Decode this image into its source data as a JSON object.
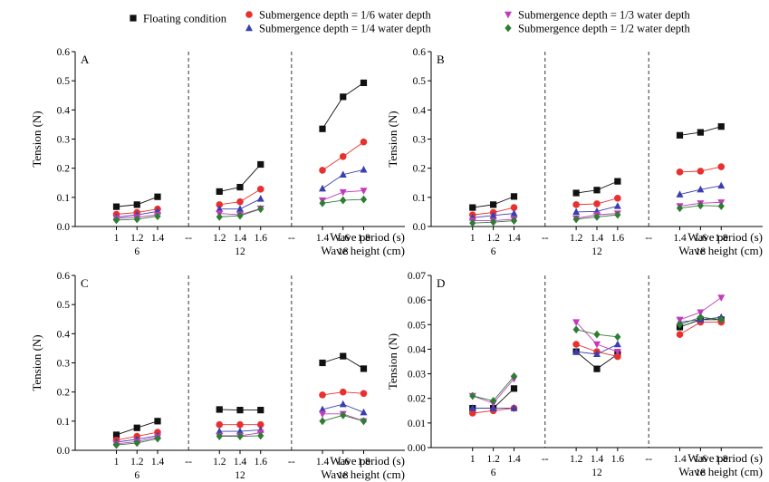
{
  "chart_data": {
    "type": "line",
    "legend": {
      "placement": "top",
      "items": [
        {
          "key": "floating",
          "label": "Floating condition",
          "marker": "square",
          "color": "#111111"
        },
        {
          "key": "d6",
          "label": "Submergence depth = 1/6 water depth",
          "marker": "circle",
          "color": "#e8312f"
        },
        {
          "key": "d4",
          "label": "Submergence depth = 1/4 water depth",
          "marker": "triangle-up",
          "color": "#3a3fb0"
        },
        {
          "key": "d3",
          "label": "Submergence depth = 1/3 water depth",
          "marker": "triangle-down",
          "color": "#c23bbf"
        },
        {
          "key": "d2",
          "label": "Submergence depth = 1/2 water depth",
          "marker": "diamond",
          "color": "#2e7d32"
        }
      ]
    },
    "x_axis": {
      "period_title": "Wave period (s)",
      "height_title": "Wave height (cm)",
      "sep_label": "--",
      "groups": [
        {
          "height": "6",
          "periods": [
            "1",
            "1.2",
            "1.4"
          ]
        },
        {
          "height": "12",
          "periods": [
            "1.2",
            "1.4",
            "1.6"
          ]
        },
        {
          "height": "18",
          "periods": [
            "1.4",
            "1.6",
            "1.8"
          ]
        }
      ]
    },
    "panels": [
      {
        "letter": "A",
        "ylabel": "Tension (N)",
        "ylim": [
          0,
          0.6
        ],
        "yticks": [
          "0.0",
          "0.1",
          "0.2",
          "0.3",
          "0.4",
          "0.5",
          "0.6"
        ],
        "series": {
          "floating": [
            [
              0.068,
              0.075,
              0.102
            ],
            [
              0.12,
              0.135,
              0.213
            ],
            [
              0.335,
              0.445,
              0.493
            ]
          ],
          "d6": [
            [
              0.042,
              0.048,
              0.06
            ],
            [
              0.075,
              0.085,
              0.128
            ],
            [
              0.193,
              0.24,
              0.29
            ]
          ],
          "d4": [
            [
              0.032,
              0.04,
              0.052
            ],
            [
              0.06,
              0.06,
              0.095
            ],
            [
              0.13,
              0.178,
              0.195
            ]
          ],
          "d3": [
            [
              0.028,
              0.032,
              0.04
            ],
            [
              0.045,
              0.04,
              0.062
            ],
            [
              0.09,
              0.118,
              0.123
            ]
          ],
          "d2": [
            [
              0.022,
              0.025,
              0.035
            ],
            [
              0.033,
              0.037,
              0.06
            ],
            [
              0.08,
              0.09,
              0.093
            ]
          ]
        }
      },
      {
        "letter": "B",
        "ylabel": "Tension (N)",
        "ylim": [
          0,
          0.6
        ],
        "yticks": [
          "0.0",
          "0.1",
          "0.2",
          "0.3",
          "0.4",
          "0.5",
          "0.6"
        ],
        "series": {
          "floating": [
            [
              0.065,
              0.075,
              0.103
            ],
            [
              0.115,
              0.125,
              0.155
            ],
            [
              0.313,
              0.323,
              0.343
            ]
          ],
          "d6": [
            [
              0.04,
              0.048,
              0.065
            ],
            [
              0.075,
              0.078,
              0.097
            ],
            [
              0.187,
              0.19,
              0.205
            ]
          ],
          "d4": [
            [
              0.03,
              0.038,
              0.045
            ],
            [
              0.05,
              0.052,
              0.07
            ],
            [
              0.11,
              0.127,
              0.14
            ]
          ],
          "d3": [
            [
              0.02,
              0.02,
              0.025
            ],
            [
              0.028,
              0.04,
              0.045
            ],
            [
              0.07,
              0.08,
              0.083
            ]
          ],
          "d2": [
            [
              0.012,
              0.015,
              0.02
            ],
            [
              0.025,
              0.033,
              0.04
            ],
            [
              0.063,
              0.072,
              0.07
            ]
          ]
        }
      },
      {
        "letter": "C",
        "ylabel": "Tension (N)",
        "ylim": [
          0,
          0.6
        ],
        "yticks": [
          "0.0",
          "0.1",
          "0.2",
          "0.3",
          "0.4",
          "0.5",
          "0.6"
        ],
        "series": {
          "floating": [
            [
              0.053,
              0.077,
              0.1
            ],
            [
              0.14,
              0.138,
              0.138
            ],
            [
              0.3,
              0.323,
              0.28
            ]
          ],
          "d6": [
            [
              0.035,
              0.048,
              0.062
            ],
            [
              0.088,
              0.088,
              0.088
            ],
            [
              0.19,
              0.2,
              0.195
            ]
          ],
          "d4": [
            [
              0.028,
              0.038,
              0.05
            ],
            [
              0.065,
              0.065,
              0.07
            ],
            [
              0.14,
              0.158,
              0.13
            ]
          ],
          "d3": [
            [
              0.022,
              0.03,
              0.045
            ],
            [
              0.05,
              0.05,
              0.06
            ],
            [
              0.125,
              0.125,
              0.1
            ]
          ],
          "d2": [
            [
              0.018,
              0.025,
              0.04
            ],
            [
              0.048,
              0.048,
              0.05
            ],
            [
              0.1,
              0.12,
              0.1
            ]
          ]
        }
      },
      {
        "letter": "D",
        "ylabel": "Tension (N)",
        "ylim": [
          0,
          0.07
        ],
        "yticks": [
          "0.00",
          "0.01",
          "0.02",
          "0.03",
          "0.04",
          "0.05",
          "0.06",
          "0.07"
        ],
        "series": {
          "floating": [
            [
              0.016,
              0.016,
              0.024
            ],
            [
              0.039,
              0.032,
              0.038
            ],
            [
              0.049,
              0.052,
              0.052
            ]
          ],
          "d6": [
            [
              0.014,
              0.015,
              0.016
            ],
            [
              0.042,
              0.039,
              0.037
            ],
            [
              0.046,
              0.051,
              0.051
            ]
          ],
          "d4": [
            [
              0.016,
              0.016,
              0.016
            ],
            [
              0.039,
              0.038,
              0.042
            ],
            [
              0.051,
              0.052,
              0.053
            ]
          ],
          "d3": [
            [
              0.021,
              0.018,
              0.028
            ],
            [
              0.051,
              0.042,
              0.039
            ],
            [
              0.052,
              0.055,
              0.061
            ]
          ],
          "d2": [
            [
              0.021,
              0.019,
              0.029
            ],
            [
              0.048,
              0.046,
              0.045
            ],
            [
              0.05,
              0.053,
              0.052
            ]
          ]
        }
      }
    ]
  }
}
